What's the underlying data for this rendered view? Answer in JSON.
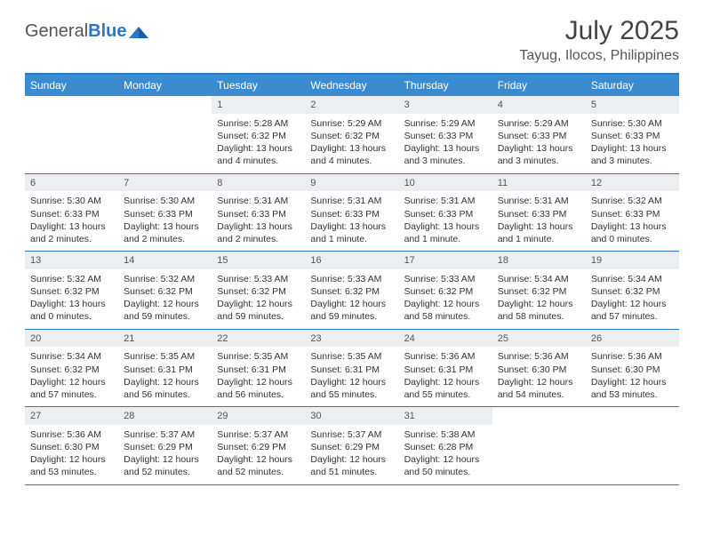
{
  "logo": {
    "text1": "General",
    "text2": "Blue"
  },
  "title": "July 2025",
  "location": "Tayug, Ilocos, Philippines",
  "colors": {
    "header_bg": "#3a8bd0",
    "border": "#2b79c2",
    "daynum_bg": "#eceff1",
    "text": "#333333",
    "muted": "#555555",
    "white": "#ffffff"
  },
  "weekdays": [
    "Sunday",
    "Monday",
    "Tuesday",
    "Wednesday",
    "Thursday",
    "Friday",
    "Saturday"
  ],
  "layout": {
    "first_weekday_index": 2,
    "days_in_month": 31,
    "weeks": 5
  },
  "days": {
    "1": {
      "sunrise": "5:28 AM",
      "sunset": "6:32 PM",
      "daylight": "13 hours and 4 minutes."
    },
    "2": {
      "sunrise": "5:29 AM",
      "sunset": "6:32 PM",
      "daylight": "13 hours and 4 minutes."
    },
    "3": {
      "sunrise": "5:29 AM",
      "sunset": "6:33 PM",
      "daylight": "13 hours and 3 minutes."
    },
    "4": {
      "sunrise": "5:29 AM",
      "sunset": "6:33 PM",
      "daylight": "13 hours and 3 minutes."
    },
    "5": {
      "sunrise": "5:30 AM",
      "sunset": "6:33 PM",
      "daylight": "13 hours and 3 minutes."
    },
    "6": {
      "sunrise": "5:30 AM",
      "sunset": "6:33 PM",
      "daylight": "13 hours and 2 minutes."
    },
    "7": {
      "sunrise": "5:30 AM",
      "sunset": "6:33 PM",
      "daylight": "13 hours and 2 minutes."
    },
    "8": {
      "sunrise": "5:31 AM",
      "sunset": "6:33 PM",
      "daylight": "13 hours and 2 minutes."
    },
    "9": {
      "sunrise": "5:31 AM",
      "sunset": "6:33 PM",
      "daylight": "13 hours and 1 minute."
    },
    "10": {
      "sunrise": "5:31 AM",
      "sunset": "6:33 PM",
      "daylight": "13 hours and 1 minute."
    },
    "11": {
      "sunrise": "5:31 AM",
      "sunset": "6:33 PM",
      "daylight": "13 hours and 1 minute."
    },
    "12": {
      "sunrise": "5:32 AM",
      "sunset": "6:33 PM",
      "daylight": "13 hours and 0 minutes."
    },
    "13": {
      "sunrise": "5:32 AM",
      "sunset": "6:32 PM",
      "daylight": "13 hours and 0 minutes."
    },
    "14": {
      "sunrise": "5:32 AM",
      "sunset": "6:32 PM",
      "daylight": "12 hours and 59 minutes."
    },
    "15": {
      "sunrise": "5:33 AM",
      "sunset": "6:32 PM",
      "daylight": "12 hours and 59 minutes."
    },
    "16": {
      "sunrise": "5:33 AM",
      "sunset": "6:32 PM",
      "daylight": "12 hours and 59 minutes."
    },
    "17": {
      "sunrise": "5:33 AM",
      "sunset": "6:32 PM",
      "daylight": "12 hours and 58 minutes."
    },
    "18": {
      "sunrise": "5:34 AM",
      "sunset": "6:32 PM",
      "daylight": "12 hours and 58 minutes."
    },
    "19": {
      "sunrise": "5:34 AM",
      "sunset": "6:32 PM",
      "daylight": "12 hours and 57 minutes."
    },
    "20": {
      "sunrise": "5:34 AM",
      "sunset": "6:32 PM",
      "daylight": "12 hours and 57 minutes."
    },
    "21": {
      "sunrise": "5:35 AM",
      "sunset": "6:31 PM",
      "daylight": "12 hours and 56 minutes."
    },
    "22": {
      "sunrise": "5:35 AM",
      "sunset": "6:31 PM",
      "daylight": "12 hours and 56 minutes."
    },
    "23": {
      "sunrise": "5:35 AM",
      "sunset": "6:31 PM",
      "daylight": "12 hours and 55 minutes."
    },
    "24": {
      "sunrise": "5:36 AM",
      "sunset": "6:31 PM",
      "daylight": "12 hours and 55 minutes."
    },
    "25": {
      "sunrise": "5:36 AM",
      "sunset": "6:30 PM",
      "daylight": "12 hours and 54 minutes."
    },
    "26": {
      "sunrise": "5:36 AM",
      "sunset": "6:30 PM",
      "daylight": "12 hours and 53 minutes."
    },
    "27": {
      "sunrise": "5:36 AM",
      "sunset": "6:30 PM",
      "daylight": "12 hours and 53 minutes."
    },
    "28": {
      "sunrise": "5:37 AM",
      "sunset": "6:29 PM",
      "daylight": "12 hours and 52 minutes."
    },
    "29": {
      "sunrise": "5:37 AM",
      "sunset": "6:29 PM",
      "daylight": "12 hours and 52 minutes."
    },
    "30": {
      "sunrise": "5:37 AM",
      "sunset": "6:29 PM",
      "daylight": "12 hours and 51 minutes."
    },
    "31": {
      "sunrise": "5:38 AM",
      "sunset": "6:28 PM",
      "daylight": "12 hours and 50 minutes."
    }
  },
  "labels": {
    "sunrise": "Sunrise:",
    "sunset": "Sunset:",
    "daylight": "Daylight:"
  }
}
